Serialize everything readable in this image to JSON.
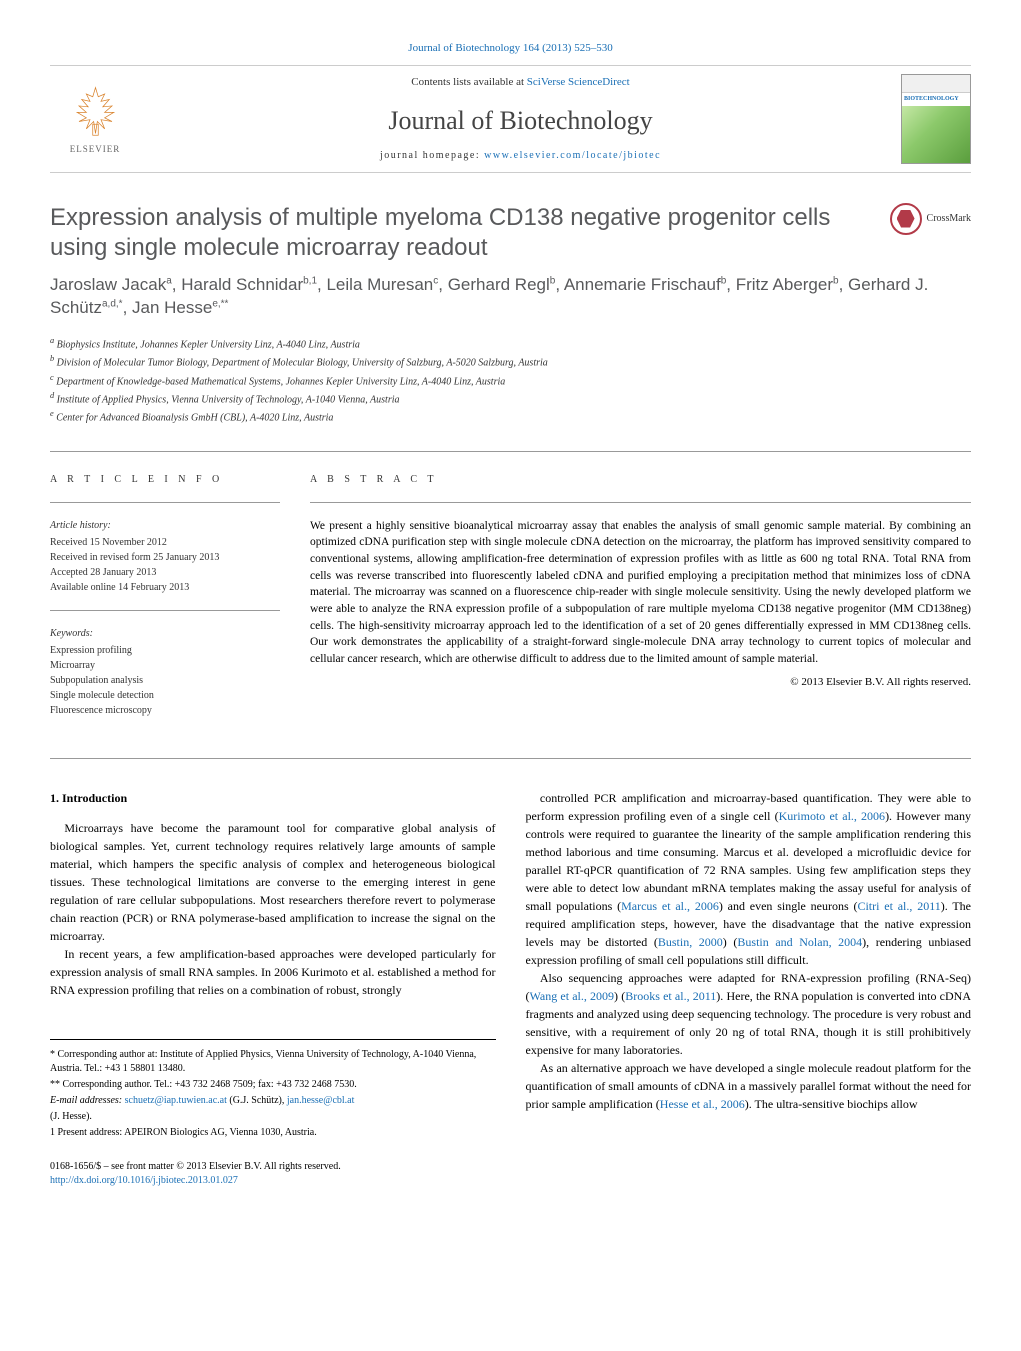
{
  "header": {
    "citation": "Journal of Biotechnology 164 (2013) 525–530",
    "contents_prefix": "Contents lists available at ",
    "contents_link": "SciVerse ScienceDirect",
    "journal_name": "Journal of Biotechnology",
    "homepage_prefix": "journal homepage: ",
    "homepage_link": "www.elsevier.com/locate/jbiotec",
    "elsevier_label": "ELSEVIER",
    "cover_label": "BIOTECHNOLOGY",
    "crossmark_label": "CrossMark"
  },
  "title": "Expression analysis of multiple myeloma CD138 negative progenitor cells using single molecule microarray readout",
  "authors_html": "Jaroslaw Jacak<sup>a</sup>, Harald Schnidar<sup>b,1</sup>, Leila Muresan<sup>c</sup>, Gerhard Regl<sup>b</sup>, Annemarie Frischauf<sup>b</sup>, Fritz Aberger<sup>b</sup>, Gerhard J. Schütz<sup>a,d,*</sup>, Jan Hesse<sup>e,**</sup>",
  "affiliations": [
    "a Biophysics Institute, Johannes Kepler University Linz, A-4040 Linz, Austria",
    "b Division of Molecular Tumor Biology, Department of Molecular Biology, University of Salzburg, A-5020 Salzburg, Austria",
    "c Department of Knowledge-based Mathematical Systems, Johannes Kepler University Linz, A-4040 Linz, Austria",
    "d Institute of Applied Physics, Vienna University of Technology, A-1040 Vienna, Austria",
    "e Center for Advanced Bioanalysis GmbH (CBL), A-4020 Linz, Austria"
  ],
  "article_info": {
    "heading": "A R T I C L E   I N F O",
    "history_label": "Article history:",
    "history": [
      "Received 15 November 2012",
      "Received in revised form 25 January 2013",
      "Accepted 28 January 2013",
      "Available online 14 February 2013"
    ],
    "keywords_label": "Keywords:",
    "keywords": [
      "Expression profiling",
      "Microarray",
      "Subpopulation analysis",
      "Single molecule detection",
      "Fluorescence microscopy"
    ]
  },
  "abstract": {
    "heading": "A B S T R A C T",
    "text": "We present a highly sensitive bioanalytical microarray assay that enables the analysis of small genomic sample material. By combining an optimized cDNA purification step with single molecule cDNA detection on the microarray, the platform has improved sensitivity compared to conventional systems, allowing amplification-free determination of expression profiles with as little as 600 ng total RNA. Total RNA from cells was reverse transcribed into fluorescently labeled cDNA and purified employing a precipitation method that minimizes loss of cDNA material. The microarray was scanned on a fluorescence chip-reader with single molecule sensitivity. Using the newly developed platform we were able to analyze the RNA expression profile of a subpopulation of rare multiple myeloma CD138 negative progenitor (MM CD138neg) cells. The high-sensitivity microarray approach led to the identification of a set of 20 genes differentially expressed in MM CD138neg cells. Our work demonstrates the applicability of a straight-forward single-molecule DNA array technology to current topics of molecular and cellular cancer research, which are otherwise difficult to address due to the limited amount of sample material.",
    "copyright": "© 2013 Elsevier B.V. All rights reserved."
  },
  "body": {
    "section_heading": "1. Introduction",
    "col1": [
      "Microarrays have become the paramount tool for comparative global analysis of biological samples. Yet, current technology requires relatively large amounts of sample material, which hampers the specific analysis of complex and heterogeneous biological tissues. These technological limitations are converse to the emerging interest in gene regulation of rare cellular subpopulations. Most researchers therefore revert to polymerase chain reaction (PCR) or RNA polymerase-based amplification to increase the signal on the microarray.",
      "In recent years, a few amplification-based approaches were developed particularly for expression analysis of small RNA samples. In 2006 Kurimoto et al. established a method for RNA expression profiling that relies on a combination of robust, strongly"
    ],
    "col2": [
      "controlled PCR amplification and microarray-based quantification. They were able to perform expression profiling even of a single cell (Kurimoto et al., 2006). However many controls were required to guarantee the linearity of the sample amplification rendering this method laborious and time consuming. Marcus et al. developed a microfluidic device for parallel RT-qPCR quantification of 72 RNA samples. Using few amplification steps they were able to detect low abundant mRNA templates making the assay useful for analysis of small populations (Marcus et al., 2006) and even single neurons (Citri et al., 2011). The required amplification steps, however, have the disadvantage that the native expression levels may be distorted (Bustin, 2000) (Bustin and Nolan, 2004), rendering unbiased expression profiling of small cell populations still difficult.",
      "Also sequencing approaches were adapted for RNA-expression profiling (RNA-Seq) (Wang et al., 2009) (Brooks et al., 2011). Here, the RNA population is converted into cDNA fragments and analyzed using deep sequencing technology. The procedure is very robust and sensitive, with a requirement of only 20 ng of total RNA, though it is still prohibitively expensive for many laboratories.",
      "As an alternative approach we have developed a single molecule readout platform for the quantification of small amounts of cDNA in a massively parallel format without the need for prior sample amplification (Hesse et al., 2006). The ultra-sensitive biochips allow"
    ]
  },
  "footnotes": {
    "corr1": "* Corresponding author at: Institute of Applied Physics, Vienna University of Technology, A-1040 Vienna, Austria. Tel.: +43 1 58801 13480.",
    "corr2": "** Corresponding author. Tel.: +43 732 2468 7509; fax: +43 732 2468 7530.",
    "emails_label": "E-mail addresses: ",
    "email1": "schuetz@iap.tuwien.ac.at",
    "email1_who": " (G.J. Schütz), ",
    "email2": "jan.hesse@cbl.at",
    "email2_who": " (J. Hesse).",
    "present": "1 Present address: APEIRON Biologics AG, Vienna 1030, Austria."
  },
  "bottom": {
    "issn_line": "0168-1656/$ – see front matter © 2013 Elsevier B.V. All rights reserved.",
    "doi": "http://dx.doi.org/10.1016/j.jbiotec.2013.01.027"
  },
  "colors": {
    "link": "#1a6fb5",
    "heading_gray": "#58595b",
    "crossmark": "#b23a48"
  }
}
